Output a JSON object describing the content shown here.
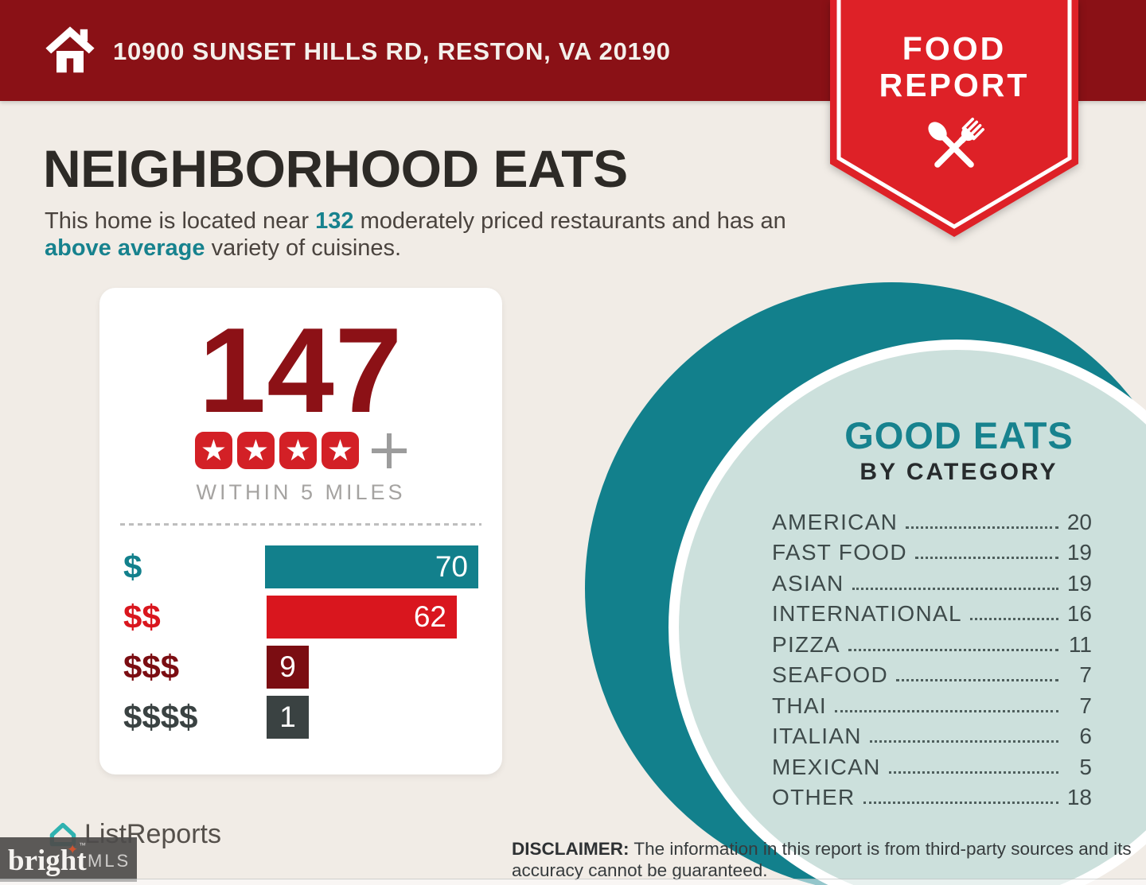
{
  "page": {
    "background_color": "#F1ECE6",
    "accent_teal": "#12808C",
    "accent_red": "#DE2127",
    "accent_maroon": "#8A1116",
    "inner_circle_color": "#CCE0DC"
  },
  "header": {
    "address": "10900 SUNSET HILLS RD, RESTON, VA 20190",
    "bar_color": "#8A1116",
    "icon": "house-icon"
  },
  "badge": {
    "line1": "FOOD",
    "line2": "REPORT",
    "color": "#DE2127",
    "icon": "crossed-spoon-fork-icon"
  },
  "hero": {
    "title": "NEIGHBORHOOD EATS",
    "subtitle_segments": [
      "This home is located near ",
      "132",
      " moderately priced restaurants and has an ",
      "above average",
      " variety of cuisines."
    ]
  },
  "stats_card": {
    "count": "147",
    "star_count": 4,
    "star_color": "#D32026",
    "plus_sign": "+",
    "radius_label": "WITHIN 5 MILES",
    "price_bars": [
      {
        "label": "$",
        "value": 70,
        "color": "#12808C"
      },
      {
        "label": "$$",
        "value": 62,
        "color": "#D9161E"
      },
      {
        "label": "$$$",
        "value": 9,
        "color": "#7B0D12"
      },
      {
        "label": "$$$$",
        "value": 1,
        "color": "#3A4242"
      }
    ]
  },
  "good_eats": {
    "title": "GOOD EATS",
    "subtitle": "BY CATEGORY",
    "categories": [
      {
        "label": "AMERICAN",
        "value": 20
      },
      {
        "label": "FAST FOOD",
        "value": 19
      },
      {
        "label": "ASIAN",
        "value": 19
      },
      {
        "label": "INTERNATIONAL",
        "value": 16
      },
      {
        "label": "PIZZA",
        "value": 11
      },
      {
        "label": "SEAFOOD",
        "value": 7
      },
      {
        "label": "THAI",
        "value": 7
      },
      {
        "label": "ITALIAN",
        "value": 6
      },
      {
        "label": "MEXICAN",
        "value": 5
      },
      {
        "label": "OTHER",
        "value": 18
      }
    ]
  },
  "disclaimer": {
    "label": "DISCLAIMER:",
    "text": " The information in this report is from third-party sources and its accuracy cannot be guaranteed."
  },
  "footer": {
    "listreports": "ListReports",
    "bright": "bright",
    "trademark": "™",
    "mls": "MLS"
  },
  "chart_data": [
    {
      "type": "bar",
      "orientation": "horizontal",
      "title": "147 four-star-plus restaurants within 5 miles, by price tier",
      "categories": [
        "$",
        "$$",
        "$$$",
        "$$$$"
      ],
      "values": [
        70,
        62,
        9,
        1
      ],
      "colors": [
        "#12808C",
        "#D9161E",
        "#7B0D12",
        "#3A4242"
      ],
      "value_labels": "inside bar, white",
      "xlim": [
        0,
        70
      ],
      "grid": false,
      "legend": false
    },
    {
      "type": "table",
      "title": "GOOD EATS BY CATEGORY",
      "categories": [
        "AMERICAN",
        "FAST FOOD",
        "ASIAN",
        "INTERNATIONAL",
        "PIZZA",
        "SEAFOOD",
        "THAI",
        "ITALIAN",
        "MEXICAN",
        "OTHER"
      ],
      "values": [
        20,
        19,
        19,
        16,
        11,
        7,
        7,
        6,
        5,
        18
      ]
    }
  ]
}
